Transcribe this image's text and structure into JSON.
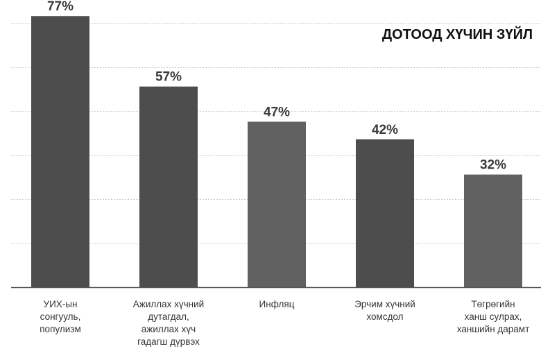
{
  "chart_data": {
    "type": "bar",
    "title": "ДОТООД ХҮЧИН ЗҮЙЛ",
    "categories": [
      "УИХ-ын\nсонгууль,\nпопулизм",
      "Ажиллах хүчний\nдутагдал,\nажиллах хүч\nгадагш дүрвэх",
      "Инфляц",
      "Эрчим хүчний\nхомсдол",
      "Төгрөгийн\nханш сулрах,\nханшийн дарамт"
    ],
    "values": [
      77,
      57,
      47,
      42,
      32
    ],
    "value_labels": [
      "77%",
      "57%",
      "47%",
      "42%",
      "32%"
    ],
    "ylim": [
      0,
      80
    ],
    "grid": true,
    "colors": [
      "#4d4d4d",
      "#4d4d4d",
      "#616161",
      "#4d4d4d",
      "#616161"
    ]
  }
}
